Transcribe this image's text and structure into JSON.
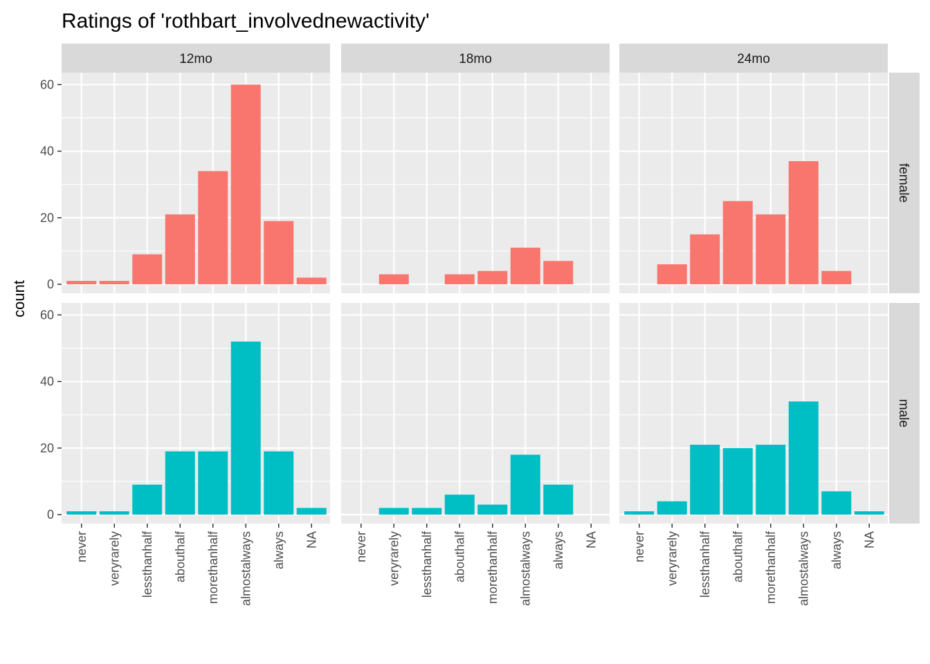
{
  "chart_data": {
    "type": "bar",
    "title": "Ratings of 'rothbart_involvednewactivity'",
    "xlabel": "",
    "ylabel": "count",
    "ylim": [
      -2.7,
      63.6
    ],
    "y_ticks": [
      0,
      20,
      40,
      60
    ],
    "grid": true,
    "legend": "none",
    "categories": [
      "never",
      "veryrarely",
      "lessthanhalf",
      "abouthalf",
      "morethanhalf",
      "almostalways",
      "always",
      "NA"
    ],
    "facet_columns": [
      "12mo",
      "18mo",
      "24mo"
    ],
    "facet_rows": [
      "female",
      "male"
    ],
    "colors": {
      "female": "#F8766D",
      "male": "#00BFC4"
    },
    "series": [
      {
        "row": "female",
        "column": "12mo",
        "values": [
          1,
          1,
          9,
          21,
          34,
          60,
          19,
          2
        ]
      },
      {
        "row": "female",
        "column": "18mo",
        "values": [
          0,
          3,
          0,
          3,
          4,
          11,
          7,
          0
        ]
      },
      {
        "row": "female",
        "column": "24mo",
        "values": [
          0,
          6,
          15,
          25,
          21,
          37,
          4,
          0
        ]
      },
      {
        "row": "male",
        "column": "12mo",
        "values": [
          1,
          1,
          9,
          19,
          19,
          52,
          19,
          2
        ]
      },
      {
        "row": "male",
        "column": "18mo",
        "values": [
          0,
          2,
          2,
          6,
          3,
          18,
          9,
          0
        ]
      },
      {
        "row": "male",
        "column": "24mo",
        "values": [
          1,
          4,
          21,
          20,
          21,
          34,
          7,
          1
        ]
      }
    ]
  }
}
